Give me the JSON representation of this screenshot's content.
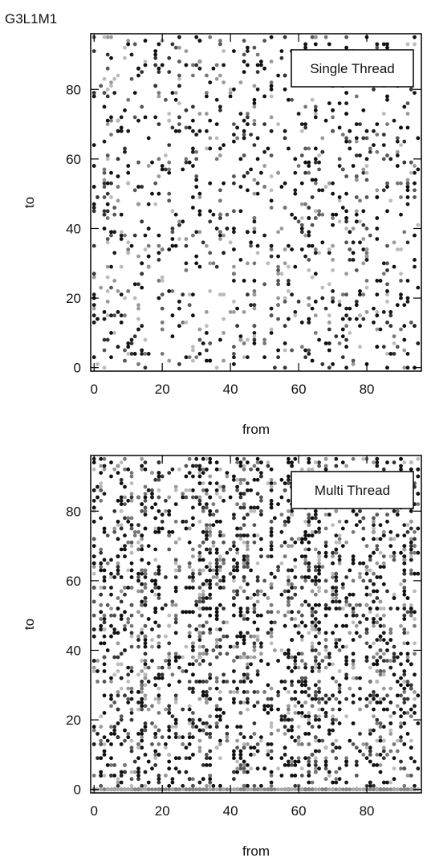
{
  "page": {
    "title": "G3L1M1"
  },
  "chart_data": [
    {
      "type": "scatter",
      "legend": "Single Thread",
      "legend_position": "top-right",
      "xlabel": "from",
      "ylabel": "to",
      "xlim": [
        -1,
        96
      ],
      "ylim": [
        -1,
        96
      ],
      "xticks": [
        0,
        20,
        40,
        60,
        80
      ],
      "yticks": [
        0,
        20,
        40,
        60,
        80
      ],
      "grid": false,
      "seed": 1234567,
      "points_count": 1100,
      "colors": [
        "#111111",
        "#111111",
        "#111111",
        "#1a1a1a",
        "#333333",
        "#555555",
        "#777777",
        "#999999",
        "#bbbbbb"
      ]
    },
    {
      "type": "scatter",
      "legend": "Multi Thread",
      "legend_position": "top-right",
      "xlabel": "from",
      "ylabel": "to",
      "xlim": [
        -1,
        96
      ],
      "ylim": [
        -1,
        96
      ],
      "xticks": [
        0,
        20,
        40,
        60,
        80
      ],
      "yticks": [
        0,
        20,
        40,
        60,
        80
      ],
      "grid": false,
      "seed": 7654321,
      "points_count": 2600,
      "bottom_row_y": 0,
      "colors": [
        "#111111",
        "#111111",
        "#111111",
        "#1a1a1a",
        "#333333",
        "#555555",
        "#777777",
        "#999999",
        "#bbbbbb"
      ]
    }
  ]
}
